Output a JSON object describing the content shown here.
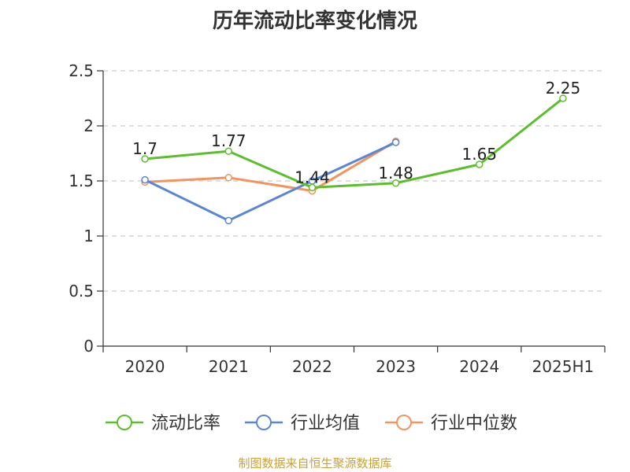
{
  "chart_data": {
    "type": "line",
    "title": "历年流动比率变化情况",
    "categories": [
      "2020",
      "2021",
      "2022",
      "2023",
      "2024",
      "2025H1"
    ],
    "ylim": [
      0,
      2.5
    ],
    "yticks": [
      "0",
      "0.5",
      "1",
      "1.5",
      "2",
      "2.5"
    ],
    "grid": true,
    "legend_position": "bottom",
    "series": [
      {
        "name": "流动比率",
        "color": "#5bbf2b",
        "values": [
          1.7,
          1.77,
          1.44,
          1.48,
          1.65,
          2.25
        ],
        "labels": [
          "1.7",
          "1.77",
          "1.44",
          "1.48",
          "1.65",
          "2.25"
        ]
      },
      {
        "name": "行业均值",
        "color": "#5b86d6",
        "values": [
          1.51,
          1.14,
          1.5,
          1.85,
          null,
          null
        ]
      },
      {
        "name": "行业中位数",
        "color": "#f4935b",
        "values": [
          1.49,
          1.53,
          1.41,
          1.86,
          null,
          null
        ]
      }
    ]
  },
  "source": "制图数据来自恒生聚源数据库"
}
